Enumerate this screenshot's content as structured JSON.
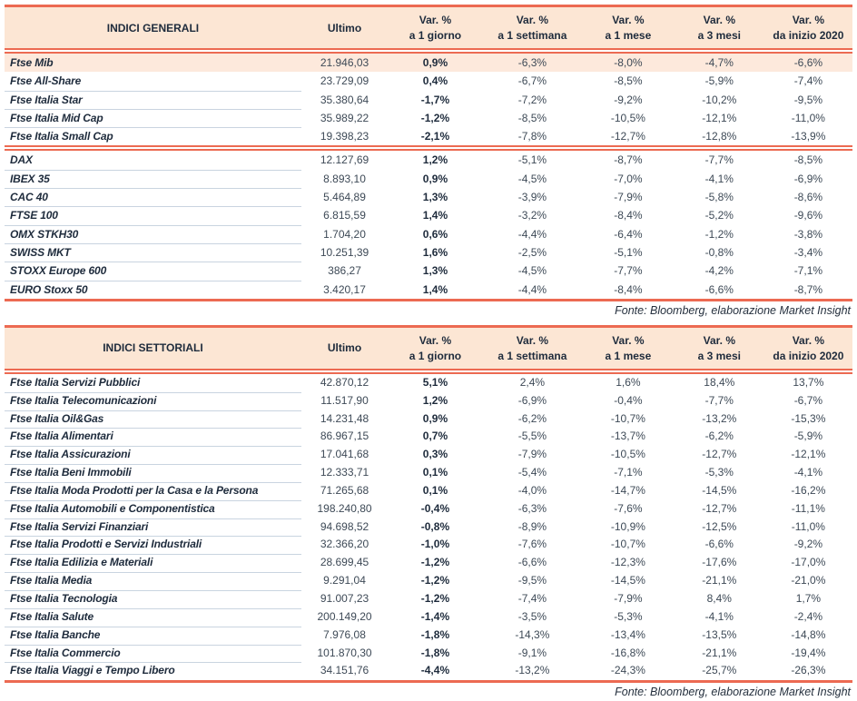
{
  "columns": {
    "ultimo": "Ultimo",
    "var_label": "Var. %",
    "periods": [
      "a 1 giorno",
      "a 1 settimana",
      "a 1 mese",
      "a 3 mesi",
      "da inizio 2020"
    ]
  },
  "fonte": "Fonte: Bloomberg, elaborazione Market Insight",
  "colors": {
    "accent_red": "#EC6A52",
    "header_bg": "#FCE6D4",
    "highlight_row_bg": "#FDE9DC",
    "divider": "#C9D4E0",
    "text_dark": "#1E2B3C",
    "text_value": "#3D4956"
  },
  "tables": [
    {
      "title": "INDICI GENERALI",
      "blocks": [
        {
          "rows": [
            {
              "name": "Ftse Mib",
              "ultimo": "21.946,03",
              "vars": [
                "0,9%",
                "-6,3%",
                "-8,0%",
                "-4,7%",
                "-6,6%"
              ],
              "highlight": true
            },
            {
              "name": "Ftse All-Share",
              "ultimo": "23.729,09",
              "vars": [
                "0,4%",
                "-6,7%",
                "-8,5%",
                "-5,9%",
                "-7,4%"
              ]
            },
            {
              "name": "Ftse Italia Star",
              "ultimo": "35.380,64",
              "vars": [
                "-1,7%",
                "-7,2%",
                "-9,2%",
                "-10,2%",
                "-9,5%"
              ]
            },
            {
              "name": "Ftse Italia Mid Cap",
              "ultimo": "35.989,22",
              "vars": [
                "-1,2%",
                "-8,5%",
                "-10,5%",
                "-12,1%",
                "-11,0%"
              ]
            },
            {
              "name": "Ftse Italia Small Cap",
              "ultimo": "19.398,23",
              "vars": [
                "-2,1%",
                "-7,8%",
                "-12,7%",
                "-12,8%",
                "-13,9%"
              ]
            }
          ]
        },
        {
          "rows": [
            {
              "name": "DAX",
              "ultimo": "12.127,69",
              "vars": [
                "1,2%",
                "-5,1%",
                "-8,7%",
                "-7,7%",
                "-8,5%"
              ]
            },
            {
              "name": "IBEX 35",
              "ultimo": "8.893,10",
              "vars": [
                "0,9%",
                "-4,5%",
                "-7,0%",
                "-4,1%",
                "-6,9%"
              ]
            },
            {
              "name": "CAC 40",
              "ultimo": "5.464,89",
              "vars": [
                "1,3%",
                "-3,9%",
                "-7,9%",
                "-5,8%",
                "-8,6%"
              ]
            },
            {
              "name": "FTSE 100",
              "ultimo": "6.815,59",
              "vars": [
                "1,4%",
                "-3,2%",
                "-8,4%",
                "-5,2%",
                "-9,6%"
              ]
            },
            {
              "name": "OMX STKH30",
              "ultimo": "1.704,20",
              "vars": [
                "0,6%",
                "-4,4%",
                "-6,4%",
                "-1,2%",
                "-3,8%"
              ]
            },
            {
              "name": "SWISS MKT",
              "ultimo": "10.251,39",
              "vars": [
                "1,6%",
                "-2,5%",
                "-5,1%",
                "-0,8%",
                "-3,4%"
              ]
            },
            {
              "name": "STOXX Europe 600",
              "ultimo": "386,27",
              "vars": [
                "1,3%",
                "-4,5%",
                "-7,7%",
                "-4,2%",
                "-7,1%"
              ]
            },
            {
              "name": "EURO Stoxx 50",
              "ultimo": "3.420,17",
              "vars": [
                "1,4%",
                "-4,4%",
                "-8,4%",
                "-6,6%",
                "-8,7%"
              ]
            }
          ]
        }
      ]
    },
    {
      "title": "INDICI SETTORIALI",
      "blocks": [
        {
          "rows": [
            {
              "name": "Ftse Italia Servizi Pubblici",
              "ultimo": "42.870,12",
              "vars": [
                "5,1%",
                "2,4%",
                "1,6%",
                "18,4%",
                "13,7%"
              ]
            },
            {
              "name": "Ftse Italia Telecomunicazioni",
              "ultimo": "11.517,90",
              "vars": [
                "1,2%",
                "-6,9%",
                "-0,4%",
                "-7,7%",
                "-6,7%"
              ]
            },
            {
              "name": "Ftse Italia Oil&Gas",
              "ultimo": "14.231,48",
              "vars": [
                "0,9%",
                "-6,2%",
                "-10,7%",
                "-13,2%",
                "-15,3%"
              ]
            },
            {
              "name": "Ftse Italia Alimentari",
              "ultimo": "86.967,15",
              "vars": [
                "0,7%",
                "-5,5%",
                "-13,7%",
                "-6,2%",
                "-5,9%"
              ]
            },
            {
              "name": "Ftse Italia Assicurazioni",
              "ultimo": "17.041,68",
              "vars": [
                "0,3%",
                "-7,9%",
                "-10,5%",
                "-12,7%",
                "-12,1%"
              ]
            },
            {
              "name": "Ftse Italia Beni Immobili",
              "ultimo": "12.333,71",
              "vars": [
                "0,1%",
                "-5,4%",
                "-7,1%",
                "-5,3%",
                "-4,1%"
              ]
            },
            {
              "name": "Ftse Italia Moda Prodotti per la Casa e la Persona",
              "ultimo": "71.265,68",
              "vars": [
                "0,1%",
                "-4,0%",
                "-14,7%",
                "-14,5%",
                "-16,2%"
              ]
            },
            {
              "name": "Ftse Italia Automobili e Componentistica",
              "ultimo": "198.240,80",
              "vars": [
                "-0,4%",
                "-6,3%",
                "-7,6%",
                "-12,7%",
                "-11,1%"
              ]
            },
            {
              "name": "Ftse Italia Servizi Finanziari",
              "ultimo": "94.698,52",
              "vars": [
                "-0,8%",
                "-8,9%",
                "-10,9%",
                "-12,5%",
                "-11,0%"
              ]
            },
            {
              "name": "Ftse Italia Prodotti e Servizi Industriali",
              "ultimo": "32.366,20",
              "vars": [
                "-1,0%",
                "-7,6%",
                "-10,7%",
                "-6,6%",
                "-9,2%"
              ]
            },
            {
              "name": "Ftse Italia Edilizia e Materiali",
              "ultimo": "28.699,45",
              "vars": [
                "-1,2%",
                "-6,6%",
                "-12,3%",
                "-17,6%",
                "-17,0%"
              ]
            },
            {
              "name": "Ftse Italia Media",
              "ultimo": "9.291,04",
              "vars": [
                "-1,2%",
                "-9,5%",
                "-14,5%",
                "-21,1%",
                "-21,0%"
              ]
            },
            {
              "name": "Ftse Italia Tecnologia",
              "ultimo": "91.007,23",
              "vars": [
                "-1,2%",
                "-7,4%",
                "-7,9%",
                "8,4%",
                "1,7%"
              ]
            },
            {
              "name": "Ftse Italia Salute",
              "ultimo": "200.149,20",
              "vars": [
                "-1,4%",
                "-3,5%",
                "-5,3%",
                "-4,1%",
                "-2,4%"
              ]
            },
            {
              "name": "Ftse Italia Banche",
              "ultimo": "7.976,08",
              "vars": [
                "-1,8%",
                "-14,3%",
                "-13,4%",
                "-13,5%",
                "-14,8%"
              ]
            },
            {
              "name": "Ftse Italia Commercio",
              "ultimo": "101.870,30",
              "vars": [
                "-1,8%",
                "-9,1%",
                "-16,8%",
                "-21,1%",
                "-19,4%"
              ]
            },
            {
              "name": "Ftse Italia Viaggi e Tempo Libero",
              "ultimo": "34.151,76",
              "vars": [
                "-4,4%",
                "-13,2%",
                "-24,3%",
                "-25,7%",
                "-26,3%"
              ]
            }
          ]
        }
      ]
    }
  ]
}
